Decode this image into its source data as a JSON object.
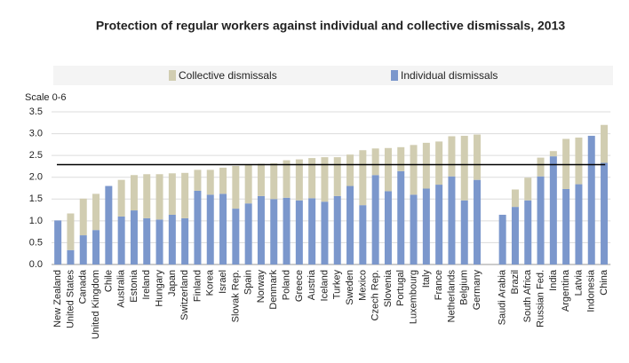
{
  "chart_data": {
    "type": "stacked_bar",
    "title": "Protection of regular workers against individual and collective dismissals, 2013",
    "y_axis_label": "Scale 0-6",
    "categories": [
      "New Zealand",
      "United States",
      "Canada",
      "United Kingdom",
      "Chile",
      "Australia",
      "Estonia",
      "Ireland",
      "Hungary",
      "Japan",
      "Switzerland",
      "Finland",
      "Korea",
      "Israel",
      "Slovak Rep.",
      "Spain",
      "Norway",
      "Denmark",
      "Poland",
      "Greece",
      "Austria",
      "Iceland",
      "Turkey",
      "Sweden",
      "Mexico",
      "Czech Rep.",
      "Slovenia",
      "Portugal",
      "Luxembourg",
      "Italy",
      "France",
      "Netherlands",
      "Belgium",
      "Germany",
      null,
      "Saudi Arabia",
      "Brazil",
      "South Africa",
      "Russian Fed.",
      "India",
      "Argentina",
      "Latvia",
      "Indonesia",
      "China"
    ],
    "series": [
      {
        "name": "Individual dismissals",
        "color": "#7b97cc",
        "values": [
          1.01,
          0.33,
          0.67,
          0.79,
          1.8,
          1.1,
          1.24,
          1.06,
          1.03,
          1.14,
          1.06,
          1.69,
          1.6,
          1.62,
          1.28,
          1.4,
          1.57,
          1.5,
          1.53,
          1.47,
          1.52,
          1.44,
          1.57,
          1.8,
          1.36,
          2.05,
          1.68,
          2.14,
          1.6,
          1.74,
          1.83,
          2.02,
          1.47,
          1.94,
          null,
          1.14,
          1.32,
          1.47,
          2.02,
          2.48,
          1.73,
          1.84,
          2.95,
          2.33
        ]
      },
      {
        "name": "Collective dismissals",
        "color": "#d1cdb1",
        "values": [
          0,
          0.84,
          0.84,
          0.83,
          0,
          0.84,
          0.81,
          1.01,
          1.04,
          0.95,
          1.04,
          0.48,
          0.57,
          0.6,
          0.98,
          0.88,
          0.74,
          0.82,
          0.86,
          0.94,
          0.92,
          1.02,
          0.89,
          0.72,
          1.26,
          0.61,
          0.99,
          0.55,
          1.14,
          1.05,
          0.99,
          0.92,
          1.48,
          1.04,
          null,
          0,
          0.4,
          0.52,
          0.43,
          0.12,
          1.15,
          1.07,
          0,
          0.87
        ]
      }
    ],
    "legend_order": [
      1,
      0
    ],
    "reference_line": 2.29,
    "ylim": [
      0,
      3.5
    ],
    "yticks": [
      {
        "value": 0,
        "label": "0.0"
      },
      0.5,
      {
        "value": 1,
        "label": "1.0"
      },
      1.5,
      {
        "value": 2,
        "label": "2.0"
      },
      2.5,
      {
        "value": 3,
        "label": "3.0"
      },
      3.5
    ],
    "grid": true
  }
}
